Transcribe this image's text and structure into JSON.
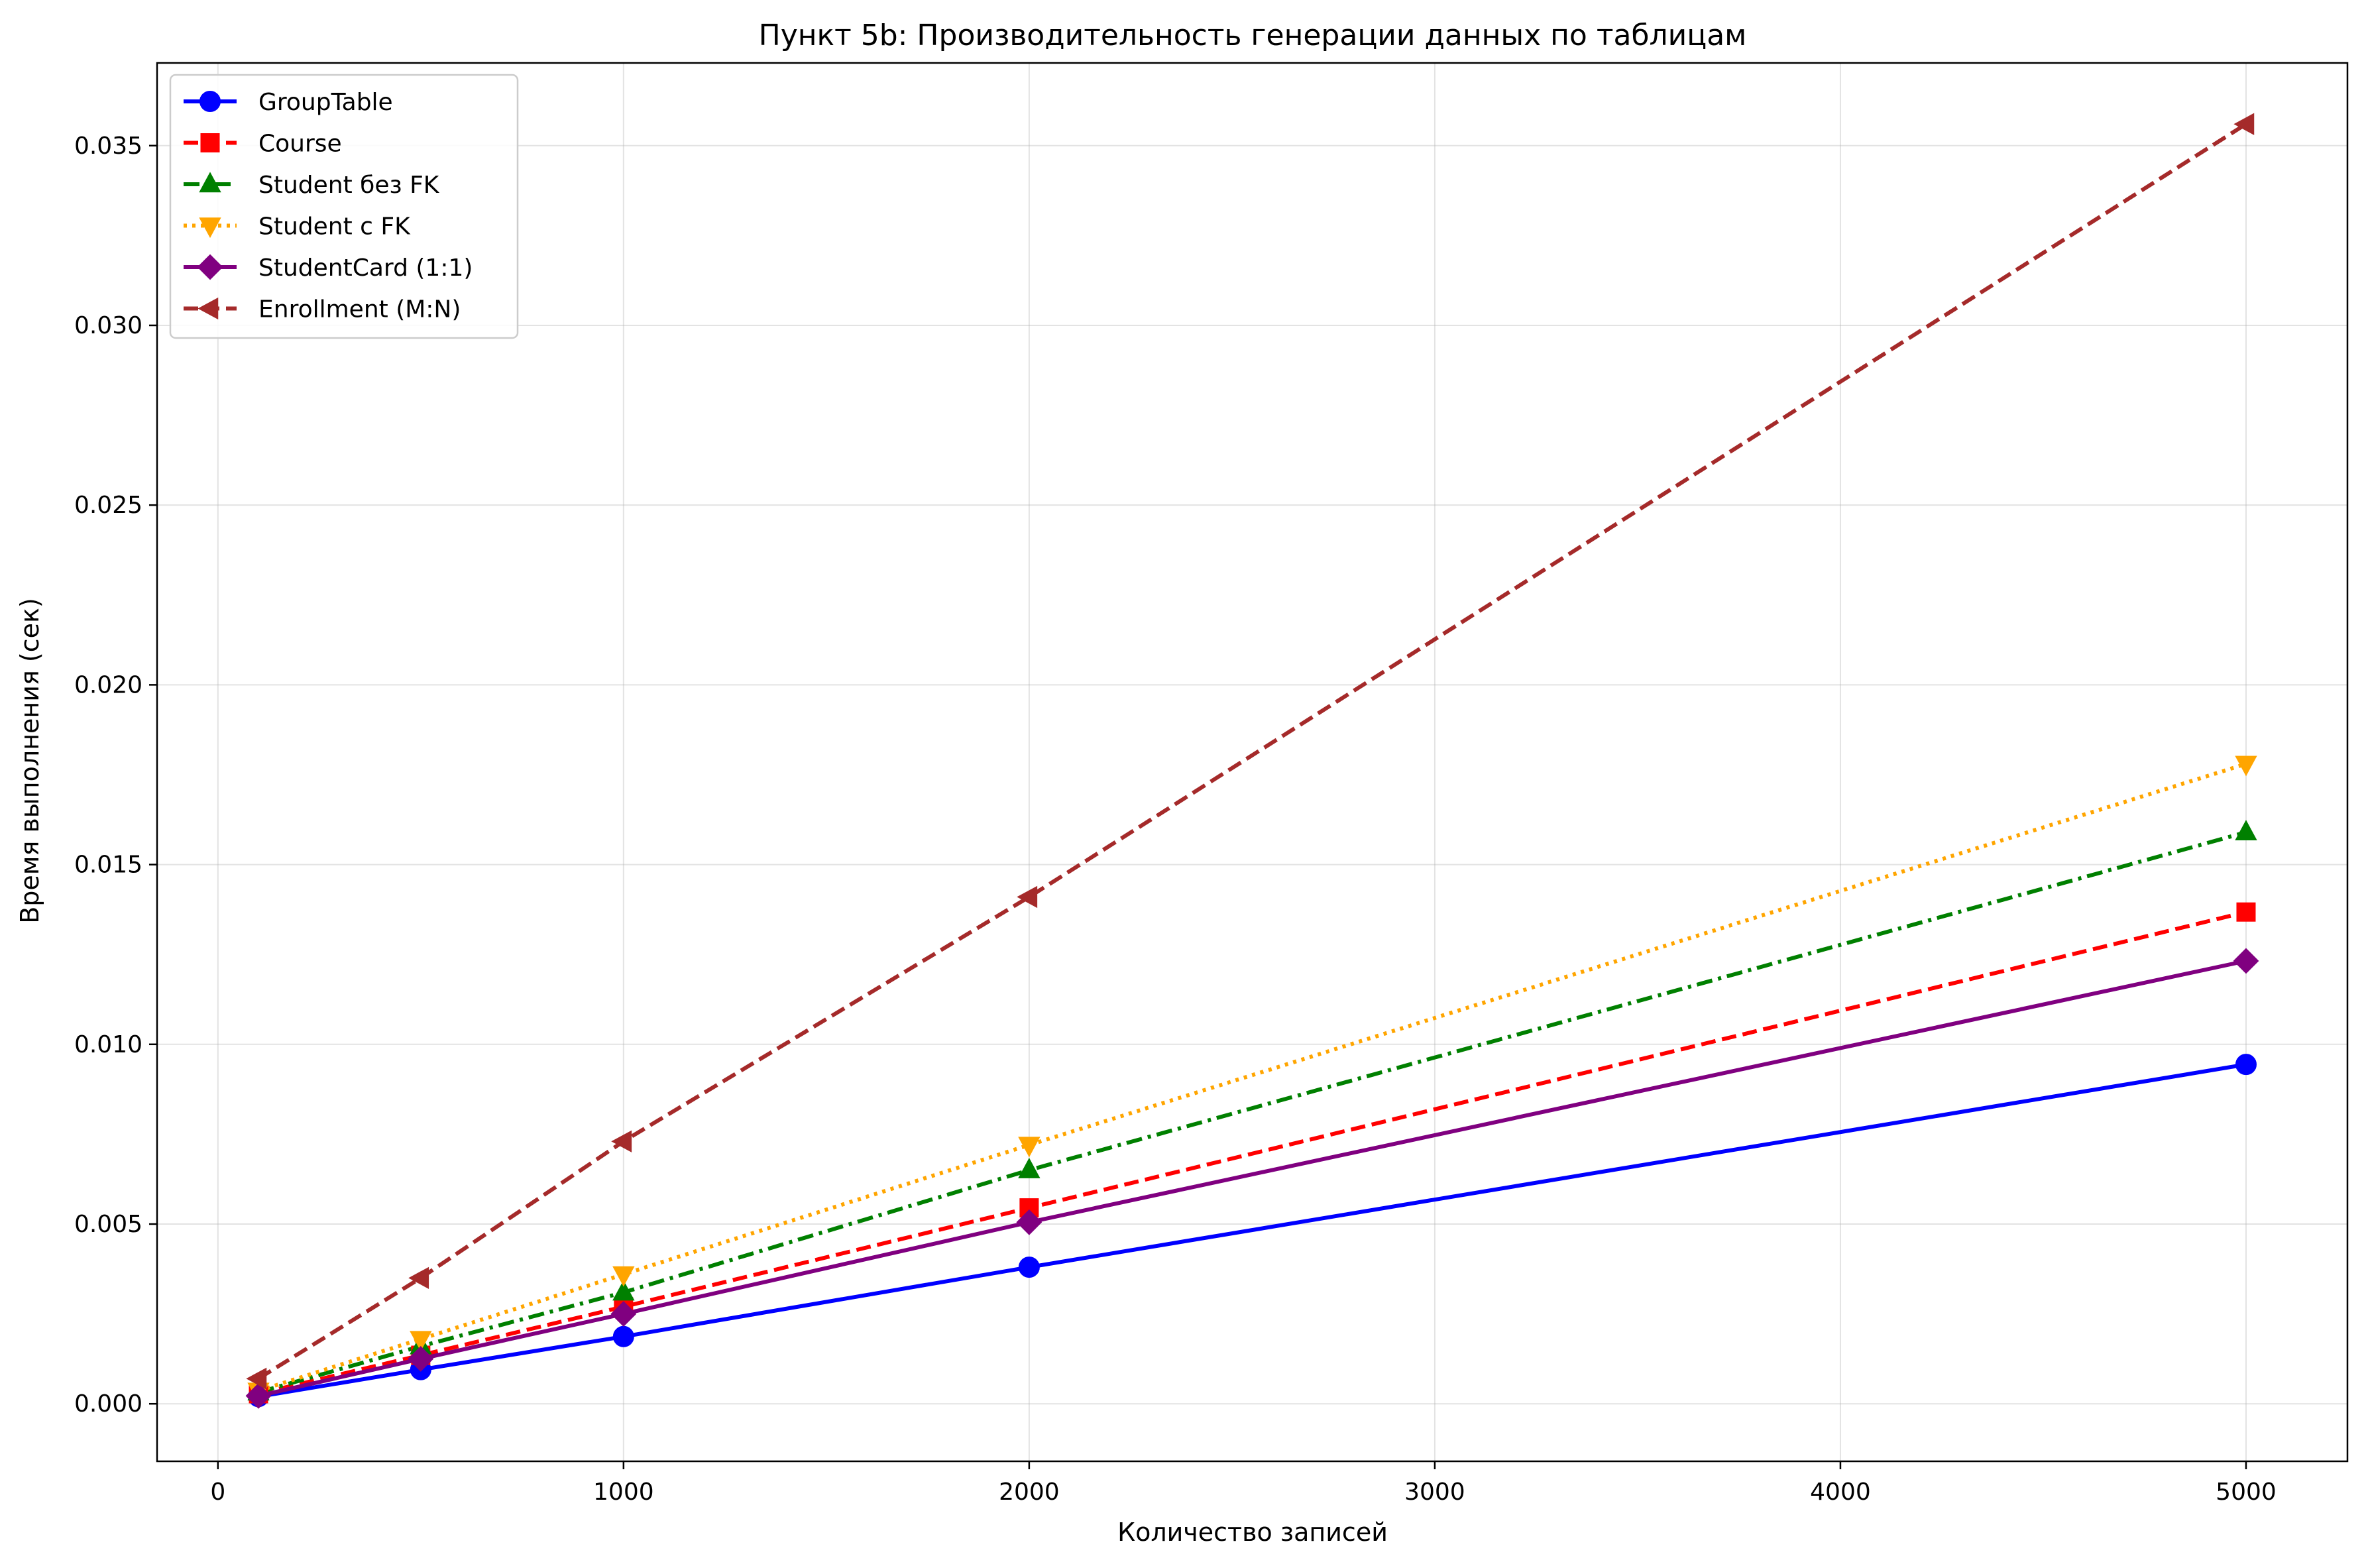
{
  "chart_data": {
    "type": "line",
    "title": "Пункт 5b: Производительность генерации данных по таблицам",
    "xlabel": "Количество записей",
    "ylabel": "Время выполнения (сек)",
    "x": [
      100,
      500,
      1000,
      2000,
      5000
    ],
    "xlim": [
      -150,
      5250
    ],
    "ylim": [
      -0.0016,
      0.0373
    ],
    "xticks": [
      "0",
      "1000",
      "2000",
      "3000",
      "4000",
      "5000"
    ],
    "yticks": [
      "0.000",
      "0.005",
      "0.010",
      "0.015",
      "0.020",
      "0.025",
      "0.030",
      "0.035"
    ],
    "grid": true,
    "legend_position": "top-left",
    "series": [
      {
        "name": "GroupTable",
        "values": [
          0.0002,
          0.00095,
          0.00187,
          0.0038,
          0.00944
        ],
        "color": "#0000ff",
        "dash": "solid",
        "marker": "circle"
      },
      {
        "name": "Course",
        "values": [
          0.00028,
          0.00135,
          0.0027,
          0.00545,
          0.01368
        ],
        "color": "#ff0000",
        "dash": "dashed",
        "marker": "square"
      },
      {
        "name": "Student без FK",
        "values": [
          0.00032,
          0.0016,
          0.0031,
          0.0065,
          0.0159
        ],
        "color": "#008000",
        "dash": "dashdot",
        "marker": "triangle-up"
      },
      {
        "name": "Student с FK",
        "values": [
          0.00036,
          0.0018,
          0.0036,
          0.0072,
          0.0178
        ],
        "color": "#ffa500",
        "dash": "dotted",
        "marker": "triangle-down"
      },
      {
        "name": "StudentCard (1:1)",
        "values": [
          0.00022,
          0.00125,
          0.0025,
          0.00505,
          0.01232
        ],
        "color": "#800080",
        "dash": "solid",
        "marker": "diamond"
      },
      {
        "name": "Enrollment (M:N)",
        "values": [
          0.0007,
          0.0035,
          0.0073,
          0.0141,
          0.0356
        ],
        "color": "#a52a2a",
        "dash": "dashed",
        "marker": "triangle-left"
      }
    ]
  }
}
